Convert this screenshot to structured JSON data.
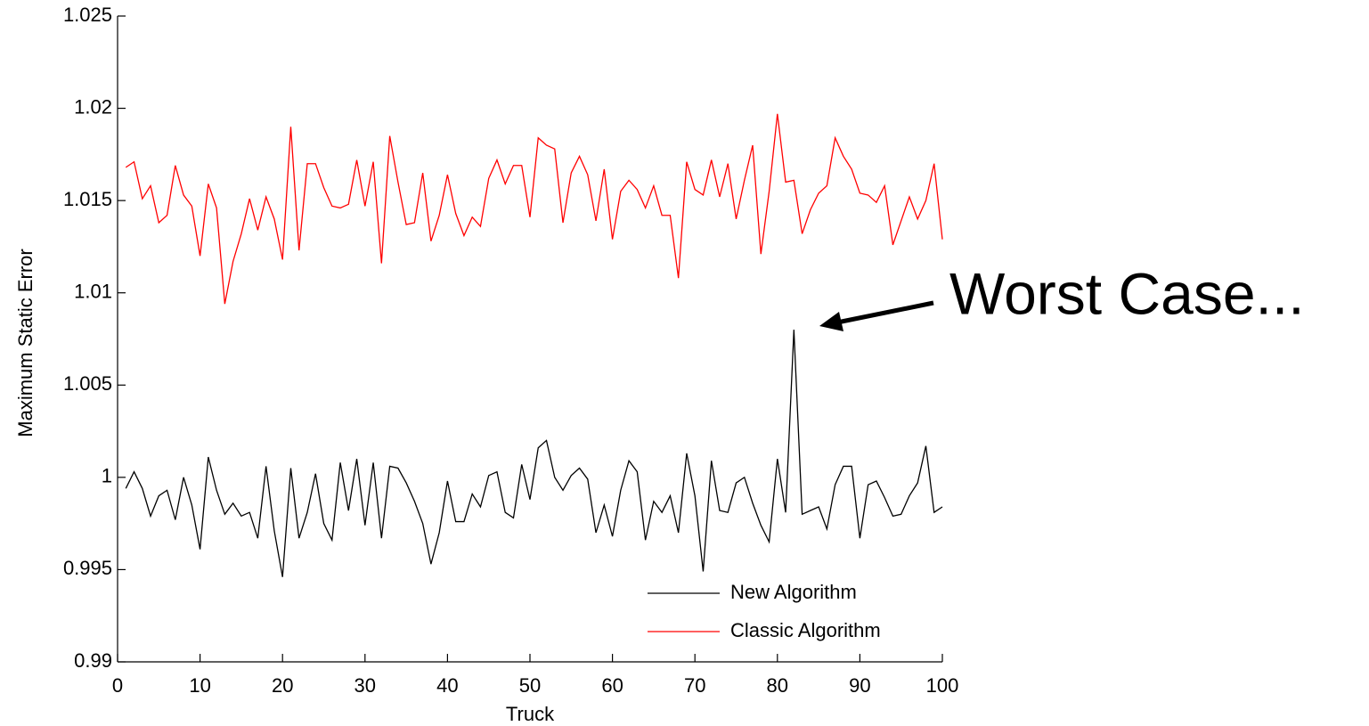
{
  "chart_data": {
    "type": "line",
    "x_label": "Truck",
    "y_label": "Maximum Static Error",
    "annotation": "Worst Case...",
    "legend": "lower right",
    "x": [
      1,
      2,
      3,
      4,
      5,
      6,
      7,
      8,
      9,
      10,
      11,
      12,
      13,
      14,
      15,
      16,
      17,
      18,
      19,
      20,
      21,
      22,
      23,
      24,
      25,
      26,
      27,
      28,
      29,
      30,
      31,
      32,
      33,
      34,
      35,
      36,
      37,
      38,
      39,
      40,
      41,
      42,
      43,
      44,
      45,
      46,
      47,
      48,
      49,
      50,
      51,
      52,
      53,
      54,
      55,
      56,
      57,
      58,
      59,
      60,
      61,
      62,
      63,
      64,
      65,
      66,
      67,
      68,
      69,
      70,
      71,
      72,
      73,
      74,
      75,
      76,
      77,
      78,
      79,
      80,
      81,
      82,
      83,
      84,
      85,
      86,
      87,
      88,
      89,
      90,
      91,
      92,
      93,
      94,
      95,
      96,
      97,
      98,
      99,
      100
    ],
    "series": [
      {
        "name": "New Algorithm",
        "color": "#000000",
        "values": [
          0.9994,
          1.0003,
          0.9994,
          0.9979,
          0.999,
          0.9993,
          0.9977,
          1.0,
          0.9985,
          0.9961,
          1.0011,
          0.9993,
          0.998,
          0.9986,
          0.9979,
          0.9981,
          0.9967,
          1.0006,
          0.9971,
          0.9946,
          1.0005,
          0.9967,
          0.9981,
          1.0002,
          0.9975,
          0.9966,
          1.0008,
          0.9982,
          1.001,
          0.9974,
          1.0008,
          0.9967,
          1.0006,
          1.0005,
          0.9997,
          0.9987,
          0.9975,
          0.9953,
          0.997,
          0.9998,
          0.9976,
          0.9976,
          0.9991,
          0.9984,
          1.0001,
          1.0003,
          0.9981,
          0.9978,
          1.0007,
          0.9988,
          1.0016,
          1.002,
          1.0,
          0.9993,
          1.0001,
          1.0005,
          0.9999,
          0.997,
          0.9985,
          0.9968,
          0.9993,
          1.0009,
          1.0003,
          0.9966,
          0.9987,
          0.9981,
          0.999,
          0.997,
          1.0013,
          0.999,
          0.9949,
          1.0009,
          0.9982,
          0.9981,
          0.9997,
          1.0,
          0.9986,
          0.9974,
          0.9965,
          1.001,
          0.9981,
          1.008,
          0.998,
          0.9982,
          0.9984,
          0.9972,
          0.9996,
          1.0006,
          1.0006,
          0.9967,
          0.9996,
          0.9998,
          0.9989,
          0.9979,
          0.998,
          0.999,
          0.9997,
          1.0017,
          0.9981,
          0.9984
        ]
      },
      {
        "name": "Classic Algorithm",
        "color": "#ff0000",
        "values": [
          1.0168,
          1.0171,
          1.0151,
          1.0158,
          1.0138,
          1.0142,
          1.0169,
          1.0153,
          1.0147,
          1.012,
          1.0159,
          1.0146,
          1.0094,
          1.0117,
          1.0132,
          1.0151,
          1.0134,
          1.0152,
          1.014,
          1.0118,
          1.019,
          1.0123,
          1.017,
          1.017,
          1.0157,
          1.0147,
          1.0146,
          1.0148,
          1.0172,
          1.0147,
          1.0171,
          1.0116,
          1.0185,
          1.016,
          1.0137,
          1.0138,
          1.0165,
          1.0128,
          1.0142,
          1.0164,
          1.0143,
          1.0131,
          1.0141,
          1.0136,
          1.0162,
          1.0172,
          1.0159,
          1.0169,
          1.0169,
          1.0141,
          1.0184,
          1.018,
          1.0178,
          1.0138,
          1.0165,
          1.0174,
          1.0164,
          1.0139,
          1.0167,
          1.0129,
          1.0155,
          1.0161,
          1.0156,
          1.0146,
          1.0158,
          1.0142,
          1.0142,
          1.0108,
          1.0171,
          1.0156,
          1.0153,
          1.0172,
          1.0152,
          1.017,
          1.014,
          1.0161,
          1.018,
          1.0121,
          1.0155,
          1.0197,
          1.016,
          1.0161,
          1.0132,
          1.0145,
          1.0154,
          1.0158,
          1.0184,
          1.0174,
          1.0167,
          1.0154,
          1.0153,
          1.0149,
          1.0158,
          1.0126,
          1.0139,
          1.0152,
          1.014,
          1.015,
          1.017,
          1.0129
        ]
      }
    ],
    "xlim": [
      0,
      100
    ],
    "xticks": [
      0,
      10,
      20,
      30,
      40,
      50,
      60,
      70,
      80,
      90,
      100
    ],
    "ylim": [
      0.99,
      1.025
    ],
    "yticks": [
      0.99,
      0.995,
      1,
      1.005,
      1.01,
      1.015,
      1.02,
      1.025
    ],
    "grid": false
  }
}
